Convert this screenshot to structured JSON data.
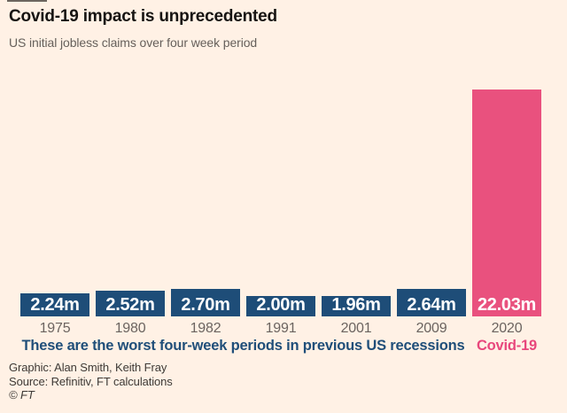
{
  "header": {
    "title": "Covid-19 impact is unprecedented",
    "subtitle": "US initial jobless claims over four week period"
  },
  "chart_data": {
    "type": "bar",
    "categories": [
      "1975",
      "1980",
      "1982",
      "1991",
      "2001",
      "2009",
      "2020"
    ],
    "values": [
      2.24,
      2.52,
      2.7,
      2.0,
      1.96,
      2.64,
      22.03
    ],
    "value_labels": [
      "2.24m",
      "2.52m",
      "2.70m",
      "2.00m",
      "1.96m",
      "2.64m",
      "22.03m"
    ],
    "bar_colors": [
      "#1E4D78",
      "#1E4D78",
      "#1E4D78",
      "#1E4D78",
      "#1E4D78",
      "#1E4D78",
      "#E9517E"
    ],
    "title": "Covid-19 impact is unprecedented",
    "subtitle": "US initial jobless claims over four week period",
    "xlabel": "",
    "ylabel": "",
    "ylim": [
      0,
      22.03
    ],
    "unit": "millions of claims",
    "grid": false,
    "legend": false,
    "annotations": [
      {
        "text": "These are the worst four-week periods in previous US recessions",
        "applies_to": [
          "1975",
          "1980",
          "1982",
          "1991",
          "2001",
          "2009"
        ],
        "color": "#1F4E79"
      },
      {
        "text": "Covid-19",
        "applies_to": [
          "2020"
        ],
        "color": "#E8477C"
      }
    ]
  },
  "annotation": {
    "recessions_note": "These are the worst four-week periods in previous US recessions",
    "covid_label": "Covid-19"
  },
  "footer": {
    "credit": "Graphic: Alan Smith, Keith Fray",
    "source": "Source: Refinitiv, FT calculations",
    "copyright": "© FT"
  },
  "colors": {
    "background": "#FFF1E5",
    "bar_blue": "#1E4D78",
    "bar_pink": "#E9517E",
    "note_blue": "#1F4E79",
    "covid_pink": "#E8477C",
    "muted_text": "#6B6460",
    "title_text": "#161412",
    "footer_text": "#3E3A36",
    "value_label_text": "#FFFFFF"
  }
}
